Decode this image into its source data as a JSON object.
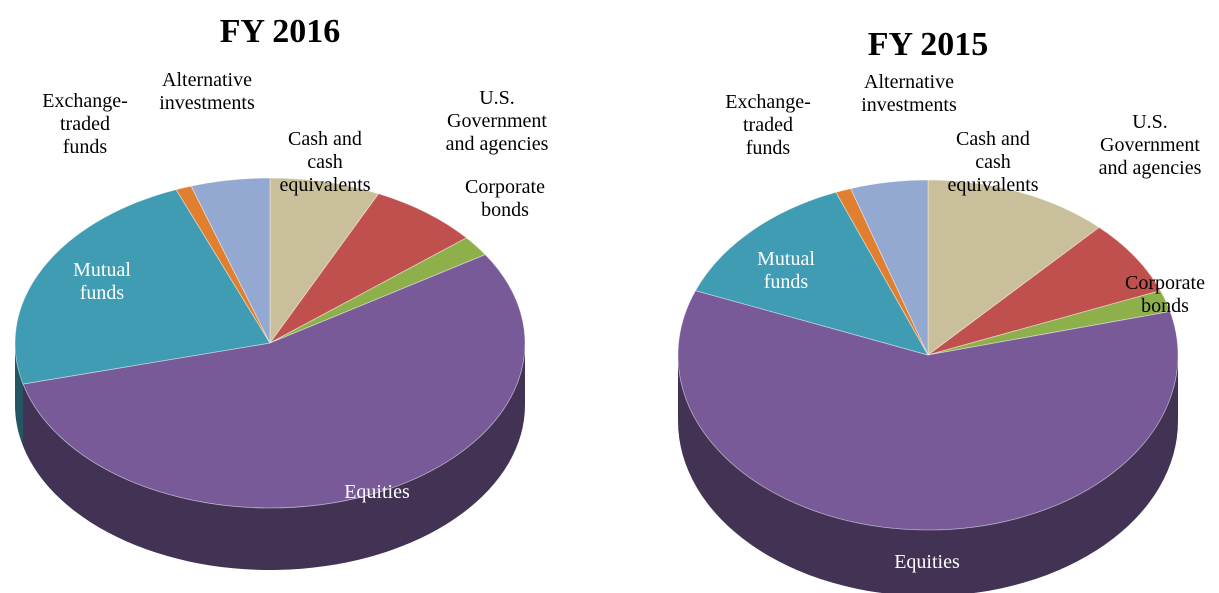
{
  "chart_data": [
    {
      "type": "pie",
      "title": "FY 2016",
      "categories": [
        "Cash and cash equivalents",
        "U.S. Government and agencies",
        "Corporate bonds",
        "Equities",
        "Mutual funds",
        "Exchange-traded funds",
        "Alternative investments"
      ],
      "values": [
        7,
        7,
        2,
        55,
        23,
        1,
        5
      ],
      "colors": [
        "#c9bf9a",
        "#c0504d",
        "#8db04a",
        "#785a98",
        "#3f9cb3",
        "#e07f30",
        "#93a9d2"
      ]
    },
    {
      "type": "pie",
      "title": "FY 2015",
      "categories": [
        "Cash and cash equivalents",
        "U.S. Government and agencies",
        "Corporate bonds",
        "Equities",
        "Mutual funds",
        "Exchange-traded funds",
        "Alternative investments"
      ],
      "values": [
        12,
        7,
        2,
        60,
        13,
        1,
        5
      ],
      "colors": [
        "#c9bf9a",
        "#c0504d",
        "#8db04a",
        "#785a98",
        "#3f9cb3",
        "#e07f30",
        "#93a9d2"
      ]
    }
  ]
}
